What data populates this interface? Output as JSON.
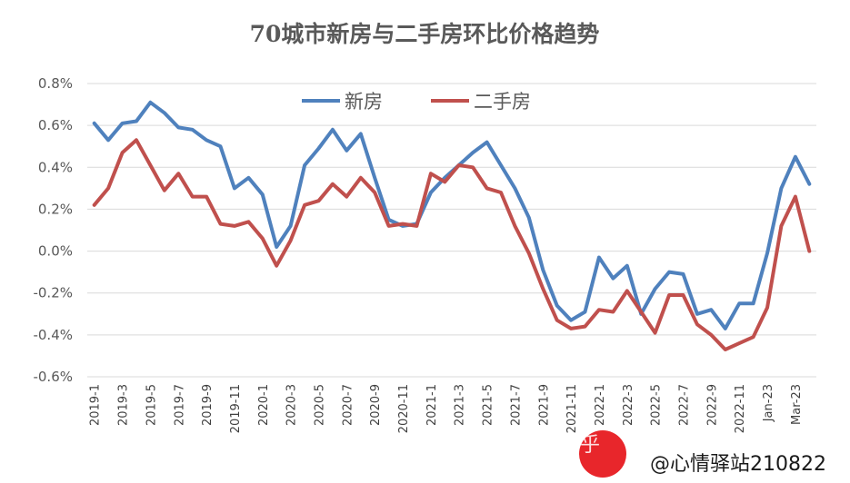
{
  "chart_data": {
    "type": "line",
    "title": "70城市新房与二手房环比价格趋势",
    "xlabel": "",
    "ylabel": "",
    "ylim": [
      -0.6,
      0.8
    ],
    "yticks": [
      "-0.6%",
      "-0.4%",
      "-0.2%",
      "0.0%",
      "0.2%",
      "0.4%",
      "0.6%",
      "0.8%"
    ],
    "ytick_values": [
      -0.6,
      -0.4,
      -0.2,
      0.0,
      0.2,
      0.4,
      0.6,
      0.8
    ],
    "legend": {
      "position": "top-center"
    },
    "grid": "horizontal",
    "categories": [
      "2019-1",
      "2019-2",
      "2019-3",
      "2019-4",
      "2019-5",
      "2019-6",
      "2019-7",
      "2019-8",
      "2019-9",
      "2019-10",
      "2019-11",
      "2019-12",
      "2020-1",
      "2020-2",
      "2020-3",
      "2020-4",
      "2020-5",
      "2020-6",
      "2020-7",
      "2020-8",
      "2020-9",
      "2020-10",
      "2020-11",
      "2020-12",
      "2021-1",
      "2021-2",
      "2021-3",
      "2021-4",
      "2021-5",
      "2021-6",
      "2021-7",
      "2021-8",
      "2021-9",
      "2021-10",
      "2021-11",
      "2021-12",
      "2022-1",
      "2022-2",
      "2022-3",
      "2022-4",
      "2022-5",
      "2022-6",
      "2022-7",
      "2022-8",
      "2022-9",
      "2022-10",
      "2022-11",
      "2022-12",
      "Jan-23",
      "Feb-23",
      "Mar-23",
      "Apr-23"
    ],
    "tick_labels": [
      "2019-1",
      "2019-3",
      "2019-5",
      "2019-7",
      "2019-9",
      "2019-11",
      "2020-1",
      "2020-3",
      "2020-5",
      "2020-7",
      "2020-9",
      "2020-11",
      "2021-1",
      "2021-3",
      "2021-5",
      "2021-7",
      "2021-9",
      "2021-11",
      "2022-1",
      "2022-3",
      "2022-5",
      "2022-7",
      "2022-9",
      "2022-11",
      "Jan-23",
      "Mar-23"
    ],
    "series": [
      {
        "name": "新房",
        "color": "#4f81bd",
        "values": [
          0.61,
          0.53,
          0.61,
          0.62,
          0.71,
          0.66,
          0.59,
          0.58,
          0.53,
          0.5,
          0.3,
          0.35,
          0.27,
          0.02,
          0.12,
          0.41,
          0.49,
          0.58,
          0.48,
          0.56,
          0.35,
          0.15,
          0.12,
          0.13,
          0.28,
          0.35,
          0.41,
          0.47,
          0.52,
          0.41,
          0.3,
          0.16,
          -0.09,
          -0.26,
          -0.33,
          -0.29,
          -0.03,
          -0.13,
          -0.07,
          -0.3,
          -0.18,
          -0.1,
          -0.11,
          -0.3,
          -0.28,
          -0.37,
          -0.25,
          -0.25,
          -0.01,
          0.3,
          0.45,
          0.32
        ]
      },
      {
        "name": "二手房",
        "color": "#c0504d",
        "values": [
          0.22,
          0.3,
          0.47,
          0.53,
          0.41,
          0.29,
          0.37,
          0.26,
          0.26,
          0.13,
          0.12,
          0.14,
          0.06,
          -0.07,
          0.05,
          0.22,
          0.24,
          0.32,
          0.26,
          0.35,
          0.28,
          0.12,
          0.13,
          0.12,
          0.37,
          0.33,
          0.41,
          0.4,
          0.3,
          0.28,
          0.12,
          -0.01,
          -0.18,
          -0.33,
          -0.37,
          -0.36,
          -0.28,
          -0.29,
          -0.19,
          -0.29,
          -0.39,
          -0.21,
          -0.21,
          -0.35,
          -0.4,
          -0.47,
          -0.44,
          -0.41,
          -0.27,
          0.12,
          0.26,
          0.0
        ]
      }
    ]
  },
  "watermark": {
    "platform": "知乎",
    "handle": "@心情驿站210822",
    "handle_shadow": "@心情驿站210822"
  }
}
